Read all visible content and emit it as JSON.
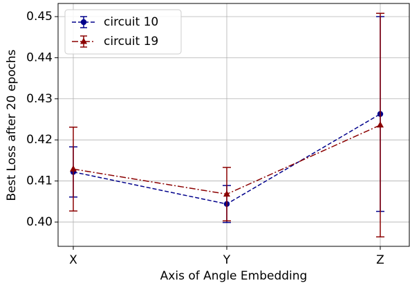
{
  "chart_data": {
    "type": "line",
    "xlabel": "Axis of Angle Embedding",
    "ylabel": "Best Loss after 20 epochs",
    "categories": [
      "X",
      "Y",
      "Z"
    ],
    "series": [
      {
        "name": "circuit 10",
        "color": "#00008b",
        "dash": "dashed",
        "marker": "circle",
        "values": [
          0.4122,
          0.4044,
          0.4263
        ],
        "errors": [
          0.0061,
          0.0045,
          0.0237
        ]
      },
      {
        "name": "circuit 19",
        "color": "#8b0000",
        "dash": "dashdot",
        "marker": "triangle",
        "values": [
          0.4129,
          0.4068,
          0.4236
        ],
        "errors": [
          0.0102,
          0.0065,
          0.0272
        ]
      }
    ],
    "ylim": [
      0.3941,
      0.4532
    ],
    "yticks": [
      {
        "value": 0.4,
        "label": "0.40"
      },
      0.41,
      0.42,
      0.43,
      0.44,
      0.45
    ],
    "grid": true,
    "legend": "upper left"
  }
}
